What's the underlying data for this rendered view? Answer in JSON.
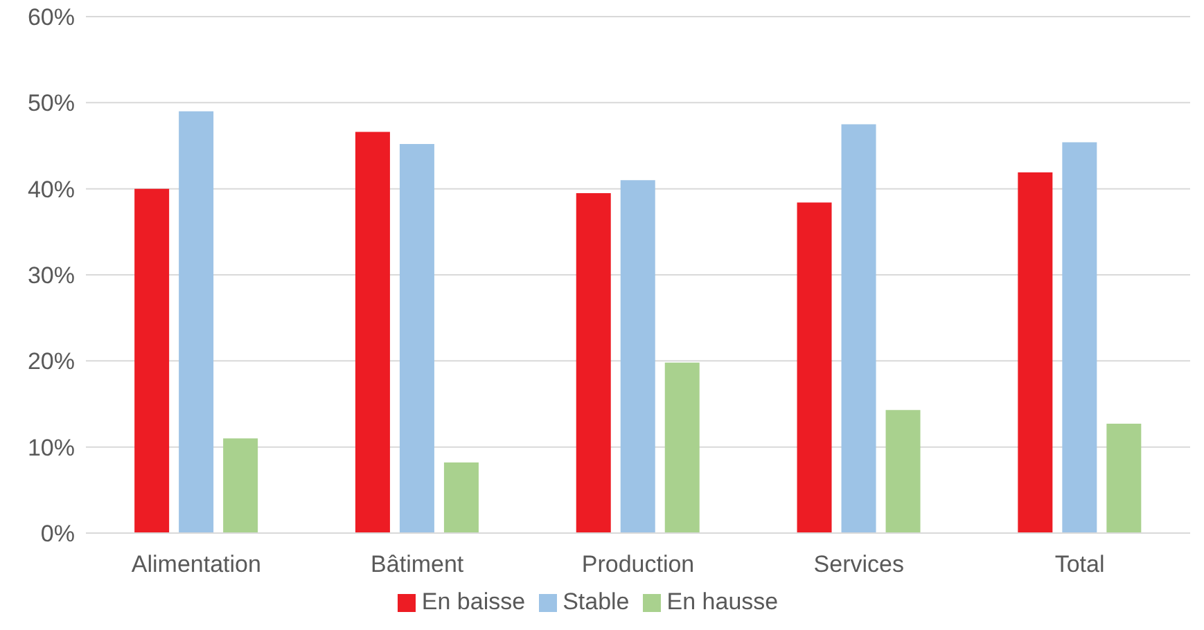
{
  "chart_data": {
    "type": "bar",
    "categories": [
      "Alimentation",
      "Bâtiment",
      "Production",
      "Services",
      "Total"
    ],
    "series": [
      {
        "name": "En baisse",
        "color": "#ed1c24",
        "values": [
          40.0,
          46.6,
          39.5,
          38.4,
          41.9
        ]
      },
      {
        "name": "Stable",
        "color": "#9dc3e6",
        "values": [
          49.0,
          45.2,
          41.0,
          47.5,
          45.4
        ]
      },
      {
        "name": "En hausse",
        "color": "#a9d18e",
        "values": [
          11.0,
          8.2,
          19.8,
          14.3,
          12.7
        ]
      }
    ],
    "ylim": [
      0,
      60
    ],
    "yticks": [
      {
        "value": 0,
        "label": "0%"
      },
      {
        "value": 10,
        "label": "10%"
      },
      {
        "value": 20,
        "label": "20%"
      },
      {
        "value": 30,
        "label": "30%"
      },
      {
        "value": 40,
        "label": "40%"
      },
      {
        "value": 50,
        "label": "50%"
      },
      {
        "value": 60,
        "label": "60%"
      }
    ],
    "grid": "y",
    "legend": "bottom"
  }
}
